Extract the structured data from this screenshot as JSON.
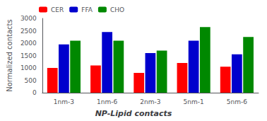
{
  "chart_data": {
    "type": "bar",
    "title": "NP-Lipid contacts",
    "categories": [
      "1nm-3",
      "1nm-6",
      "2nm-3",
      "5nm-1",
      "5nm-6"
    ],
    "series": [
      {
        "name": "CER",
        "color": "#ff0000",
        "values": [
          1000,
          1100,
          800,
          1200,
          1050
        ]
      },
      {
        "name": "FFA",
        "color": "#0000cd",
        "values": [
          1950,
          2450,
          1600,
          2100,
          1550
        ]
      },
      {
        "name": "CHO",
        "color": "#008800",
        "values": [
          2100,
          2100,
          1700,
          2650,
          2250
        ]
      }
    ],
    "ylabel": "Normalized contacts",
    "ylim": [
      0,
      3000
    ],
    "yticks": [
      0,
      500,
      1000,
      1500,
      2000,
      2500,
      3000
    ],
    "grid": false,
    "legend": "upper left"
  }
}
